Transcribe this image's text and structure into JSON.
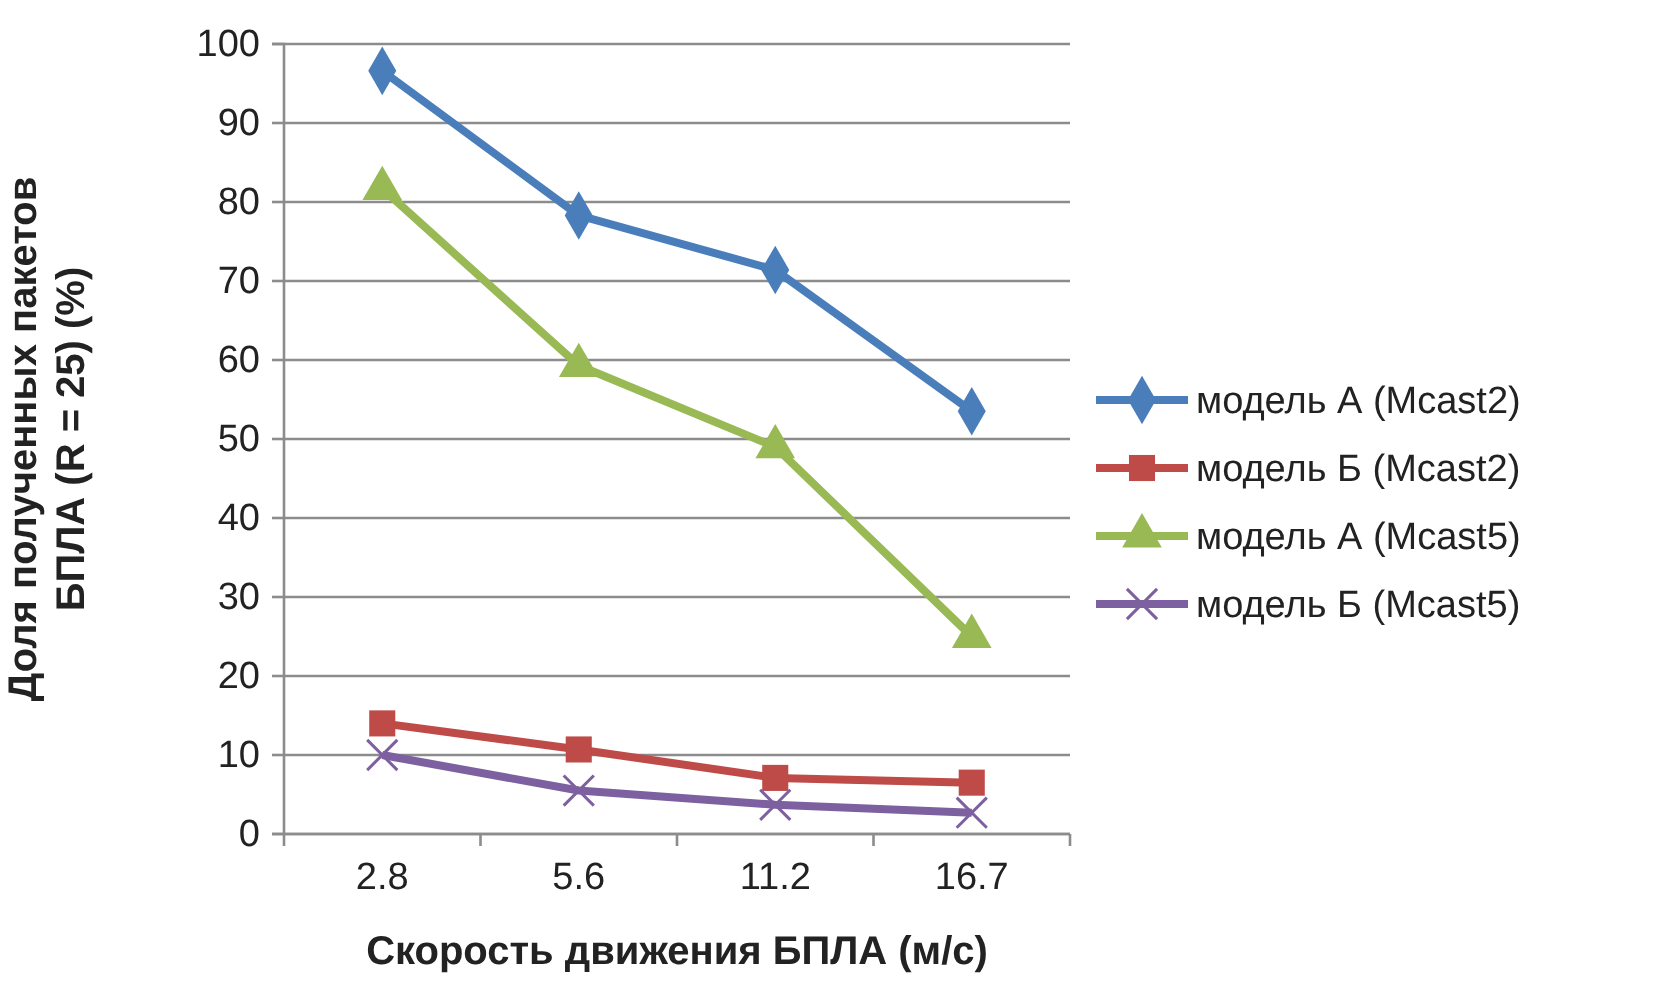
{
  "chart_data": {
    "type": "line",
    "xlabel": "Скорость движения БПЛА (м/с)",
    "ylabel": "Доля полученных пакетов БПЛА (R = 25) (%)",
    "categories": [
      "2.8",
      "5.6",
      "11.2",
      "16.7"
    ],
    "series": [
      {
        "name": "модель А (Mcast2)",
        "color": "#4a7ebb",
        "marker": "diamond",
        "values": [
          96.6,
          78.3,
          71.4,
          53.5
        ]
      },
      {
        "name": "модель Б (Mcast2)",
        "color": "#be4b48",
        "marker": "square",
        "values": [
          14,
          10.7,
          7.1,
          6.5
        ]
      },
      {
        "name": "модель А (Mcast5)",
        "color": "#98b954",
        "marker": "triangle",
        "values": [
          81.7,
          59.3,
          49,
          25
        ]
      },
      {
        "name": "модель Б (Mcast5)",
        "color": "#7d60a0",
        "marker": "cross",
        "values": [
          10,
          5.5,
          3.7,
          2.7
        ]
      }
    ],
    "ylim": [
      0,
      100
    ],
    "yticks": [
      0,
      10,
      20,
      30,
      40,
      50,
      60,
      70,
      80,
      90,
      100
    ],
    "grid": "y",
    "legend": "right"
  }
}
